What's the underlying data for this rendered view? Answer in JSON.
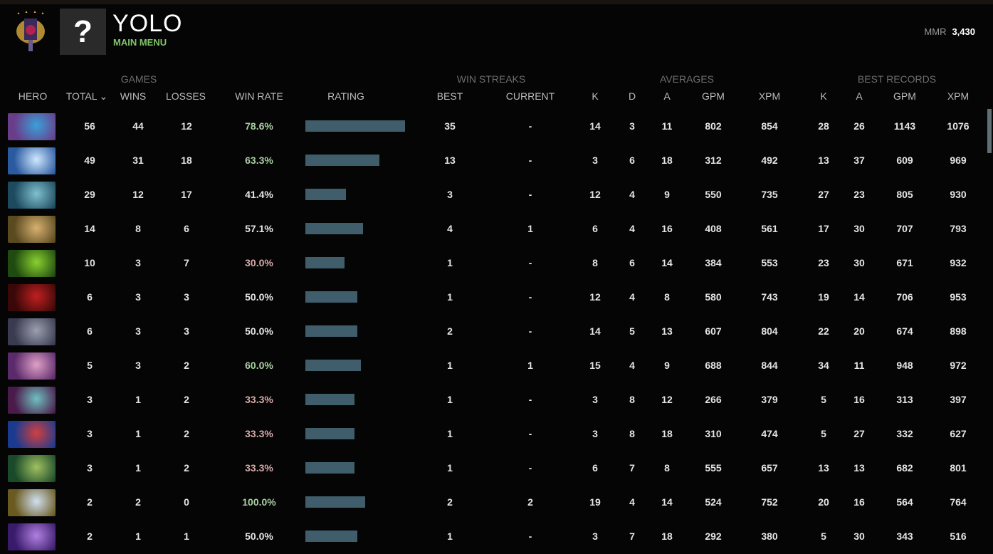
{
  "header": {
    "player_name": "YOLO",
    "subtitle": "MAIN MENU",
    "avatar_placeholder": "?",
    "mmr_label": "MMR",
    "mmr_value": "3,430"
  },
  "groups": {
    "games": "GAMES",
    "win_streaks": "WIN STREAKS",
    "averages": "AVERAGES",
    "best_records": "BEST RECORDS"
  },
  "columns": {
    "hero": "HERO",
    "total": "TOTAL",
    "sort_icon": "⌄",
    "wins": "WINS",
    "losses": "LOSSES",
    "win_rate": "WIN RATE",
    "rating": "RATING",
    "best": "BEST",
    "current": "CURRENT",
    "k": "K",
    "d": "D",
    "a": "A",
    "gpm": "GPM",
    "xpm": "XPM",
    "bk": "K",
    "ba": "A",
    "bgpm": "GPM",
    "bxpm": "XPM"
  },
  "colors": {
    "positive": "#a9cfa3",
    "neutral": "#e4e4e4",
    "negative": "#d6aaa8",
    "rating_bar": "#3f5d6a",
    "accent": "#7fc46a"
  },
  "rows": [
    {
      "portrait": [
        "#6a3d8a",
        "#3aa0d8"
      ],
      "total": "56",
      "wins": "44",
      "losses": "12",
      "win_rate": "78.6%",
      "tone": "positive",
      "rating": 100,
      "best": "35",
      "current": "-",
      "k": "14",
      "d": "3",
      "a": "11",
      "gpm": "802",
      "xpm": "854",
      "bk": "28",
      "ba": "26",
      "bgpm": "1143",
      "bxpm": "1076"
    },
    {
      "portrait": [
        "#2a5aa0",
        "#cfe8ff"
      ],
      "total": "49",
      "wins": "31",
      "losses": "18",
      "win_rate": "63.3%",
      "tone": "positive",
      "rating": 74,
      "best": "13",
      "current": "-",
      "k": "3",
      "d": "6",
      "a": "18",
      "gpm": "312",
      "xpm": "492",
      "bk": "13",
      "ba": "37",
      "bgpm": "609",
      "bxpm": "969"
    },
    {
      "portrait": [
        "#1d4a5e",
        "#7fc0d0"
      ],
      "total": "29",
      "wins": "12",
      "losses": "17",
      "win_rate": "41.4%",
      "tone": "neutral",
      "rating": 41,
      "best": "3",
      "current": "-",
      "k": "12",
      "d": "4",
      "a": "9",
      "gpm": "550",
      "xpm": "735",
      "bk": "27",
      "ba": "23",
      "bgpm": "805",
      "bxpm": "930"
    },
    {
      "portrait": [
        "#5a4a20",
        "#d8b070"
      ],
      "total": "14",
      "wins": "8",
      "losses": "6",
      "win_rate": "57.1%",
      "tone": "neutral",
      "rating": 58,
      "best": "4",
      "current": "1",
      "k": "6",
      "d": "4",
      "a": "16",
      "gpm": "408",
      "xpm": "561",
      "bk": "17",
      "ba": "30",
      "bgpm": "707",
      "bxpm": "793"
    },
    {
      "portrait": [
        "#1f4a10",
        "#8ad030"
      ],
      "total": "10",
      "wins": "3",
      "losses": "7",
      "win_rate": "30.0%",
      "tone": "negative",
      "rating": 39,
      "best": "1",
      "current": "-",
      "k": "8",
      "d": "6",
      "a": "14",
      "gpm": "384",
      "xpm": "553",
      "bk": "23",
      "ba": "30",
      "bgpm": "671",
      "bxpm": "932"
    },
    {
      "portrait": [
        "#3a0808",
        "#c02020"
      ],
      "total": "6",
      "wins": "3",
      "losses": "3",
      "win_rate": "50.0%",
      "tone": "neutral",
      "rating": 52,
      "best": "1",
      "current": "-",
      "k": "12",
      "d": "4",
      "a": "8",
      "gpm": "580",
      "xpm": "743",
      "bk": "19",
      "ba": "14",
      "bgpm": "706",
      "bxpm": "953"
    },
    {
      "portrait": [
        "#3a3a50",
        "#9aa0b0"
      ],
      "total": "6",
      "wins": "3",
      "losses": "3",
      "win_rate": "50.0%",
      "tone": "neutral",
      "rating": 52,
      "best": "2",
      "current": "-",
      "k": "14",
      "d": "5",
      "a": "13",
      "gpm": "607",
      "xpm": "804",
      "bk": "22",
      "ba": "20",
      "bgpm": "674",
      "bxpm": "898"
    },
    {
      "portrait": [
        "#5a2a6a",
        "#e0a0c8"
      ],
      "total": "5",
      "wins": "3",
      "losses": "2",
      "win_rate": "60.0%",
      "tone": "positive",
      "rating": 56,
      "best": "1",
      "current": "1",
      "k": "15",
      "d": "4",
      "a": "9",
      "gpm": "688",
      "xpm": "844",
      "bk": "34",
      "ba": "11",
      "bgpm": "948",
      "bxpm": "972"
    },
    {
      "portrait": [
        "#4a1a4a",
        "#70c0c0"
      ],
      "total": "3",
      "wins": "1",
      "losses": "2",
      "win_rate": "33.3%",
      "tone": "negative",
      "rating": 49,
      "best": "1",
      "current": "-",
      "k": "3",
      "d": "8",
      "a": "12",
      "gpm": "266",
      "xpm": "379",
      "bk": "5",
      "ba": "16",
      "bgpm": "313",
      "bxpm": "397"
    },
    {
      "portrait": [
        "#1a3a90",
        "#d04040"
      ],
      "total": "3",
      "wins": "1",
      "losses": "2",
      "win_rate": "33.3%",
      "tone": "negative",
      "rating": 49,
      "best": "1",
      "current": "-",
      "k": "3",
      "d": "8",
      "a": "18",
      "gpm": "310",
      "xpm": "474",
      "bk": "5",
      "ba": "27",
      "bgpm": "332",
      "bxpm": "627"
    },
    {
      "portrait": [
        "#1a4a2a",
        "#a0c060"
      ],
      "total": "3",
      "wins": "1",
      "losses": "2",
      "win_rate": "33.3%",
      "tone": "negative",
      "rating": 49,
      "best": "1",
      "current": "-",
      "k": "6",
      "d": "7",
      "a": "8",
      "gpm": "555",
      "xpm": "657",
      "bk": "13",
      "ba": "13",
      "bgpm": "682",
      "bxpm": "801"
    },
    {
      "portrait": [
        "#6a5a20",
        "#d0e0f0"
      ],
      "total": "2",
      "wins": "2",
      "losses": "0",
      "win_rate": "100.0%",
      "tone": "positive",
      "rating": 60,
      "best": "2",
      "current": "2",
      "k": "19",
      "d": "4",
      "a": "14",
      "gpm": "524",
      "xpm": "752",
      "bk": "20",
      "ba": "16",
      "bgpm": "564",
      "bxpm": "764"
    },
    {
      "portrait": [
        "#3a1a6a",
        "#b080e0"
      ],
      "total": "2",
      "wins": "1",
      "losses": "1",
      "win_rate": "50.0%",
      "tone": "neutral",
      "rating": 52,
      "best": "1",
      "current": "-",
      "k": "3",
      "d": "7",
      "a": "18",
      "gpm": "292",
      "xpm": "380",
      "bk": "5",
      "ba": "30",
      "bgpm": "343",
      "bxpm": "516"
    }
  ]
}
